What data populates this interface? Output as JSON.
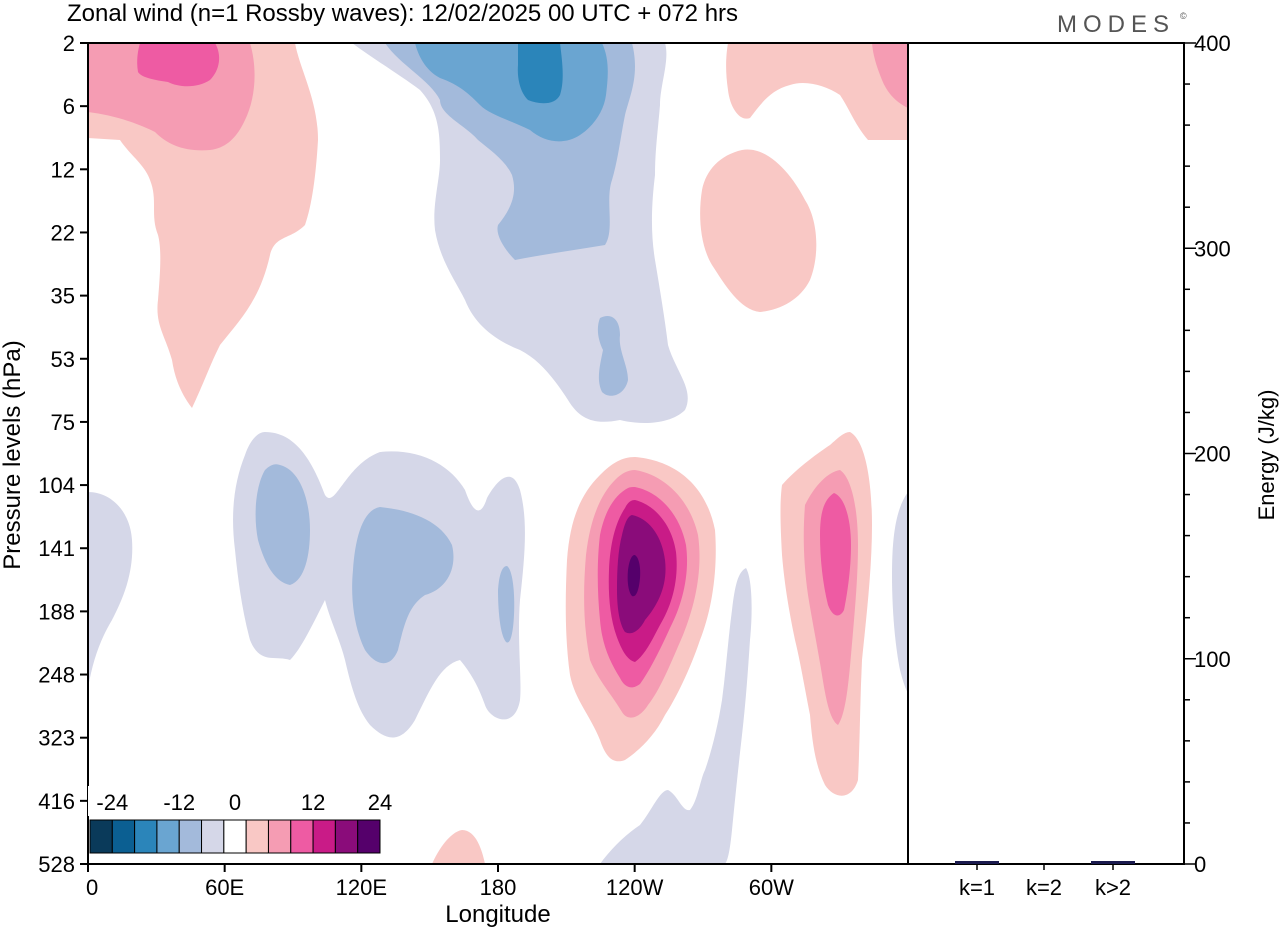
{
  "chart_data": [
    {
      "type": "heatmap",
      "title": "Zonal wind (n=1 Rossby waves):  12/02/2025  00 UTC  + 072 hrs",
      "brand": "MODES",
      "brand_mark": "©",
      "xlabel": "Longitude",
      "ylabel": "Pressure levels (hPa)",
      "x_ticks": [
        "0",
        "60E",
        "120E",
        "180",
        "120W",
        "60W"
      ],
      "x_tick_values": [
        0,
        60,
        120,
        180,
        240,
        300
      ],
      "xlim": [
        0,
        360
      ],
      "y_ticks": [
        "2",
        "6",
        "12",
        "22",
        "35",
        "53",
        "75",
        "104",
        "141",
        "188",
        "248",
        "323",
        "416",
        "528"
      ],
      "y_axis_order": "top-to-bottom",
      "colorbar": {
        "labels": [
          "-24",
          "-12",
          "0",
          "12",
          "24"
        ],
        "levels": [
          -28,
          -24,
          -20,
          -16,
          -12,
          -8,
          -4,
          4,
          8,
          12,
          16,
          20,
          24,
          28
        ],
        "colors": [
          "#0a3a5a",
          "#0b5f92",
          "#2b85ba",
          "#6aa5d1",
          "#a3badb",
          "#d5d7e8",
          "#ffffff",
          "#f9c8c5",
          "#f59cb3",
          "#ee5ba3",
          "#c91b87",
          "#8a0c7a",
          "#55006b"
        ]
      },
      "features": [
        {
          "name": "positive",
          "value": 4,
          "lon_range": [
            0,
            100
          ],
          "level_range": [
            "2",
            "75"
          ]
        },
        {
          "name": "positive",
          "value": 8,
          "lon_range": [
            0,
            70
          ],
          "level_range": [
            "2",
            "12"
          ]
        },
        {
          "name": "positive",
          "value": 12,
          "lon_range": [
            22,
            58
          ],
          "level_range": [
            "2",
            "6"
          ]
        },
        {
          "name": "negative",
          "value": -4,
          "lon_range": [
            115,
            255
          ],
          "level_range": [
            "2",
            "75"
          ]
        },
        {
          "name": "negative",
          "value": -8,
          "lon_range": [
            135,
            235
          ],
          "level_range": [
            "2",
            "22"
          ]
        },
        {
          "name": "negative",
          "value": -12,
          "lon_range": [
            165,
            225
          ],
          "level_range": [
            "2",
            "12"
          ]
        },
        {
          "name": "negative",
          "value": -16,
          "lon_range": [
            188,
            210
          ],
          "level_range": [
            "2",
            "6"
          ]
        },
        {
          "name": "positive",
          "value": 4,
          "lon_range": [
            250,
            360
          ],
          "level_range": [
            "2",
            "35"
          ]
        },
        {
          "name": "negative",
          "value": -4,
          "lon_range": [
            50,
            190
          ],
          "level_range": [
            "104",
            "323"
          ]
        },
        {
          "name": "negative",
          "value": -8,
          "lon_range": [
            60,
            160
          ],
          "level_range": [
            "104",
            "248"
          ]
        },
        {
          "name": "positive",
          "value": 28,
          "lon_range": [
            210,
            270
          ],
          "level_range": [
            "104",
            "323"
          ]
        },
        {
          "name": "positive",
          "value": 12,
          "lon_range": [
            305,
            345
          ],
          "level_range": [
            "104",
            "416"
          ]
        },
        {
          "name": "negative",
          "value": -4,
          "lon_range": [
            225,
            295
          ],
          "level_range": [
            "141",
            "528"
          ]
        }
      ]
    },
    {
      "type": "bar",
      "ylabel": "Energy (J/kg)",
      "categories": [
        "k=1",
        "k=2",
        "k>2"
      ],
      "values": [
        0.5,
        0,
        0.5
      ],
      "ylim": [
        0,
        400
      ],
      "y_ticks": [
        "0",
        "100",
        "200",
        "300",
        "400"
      ],
      "bar_color": "#1a1a4e"
    }
  ]
}
